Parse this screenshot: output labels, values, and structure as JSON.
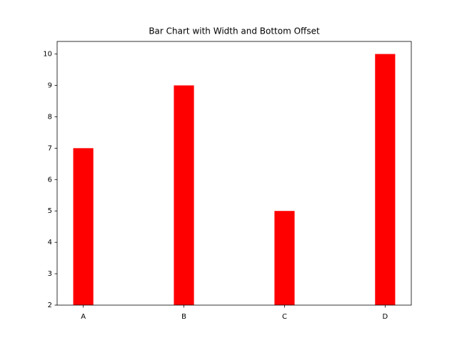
{
  "chart_data": {
    "type": "bar",
    "title": "Bar Chart with Width and Bottom Offset",
    "categories": [
      "A",
      "B",
      "C",
      "D"
    ],
    "values": [
      5,
      7,
      3,
      8
    ],
    "bottom": 2,
    "width": 0.2,
    "color": "#ff0000",
    "ylim": [
      2,
      10.4
    ],
    "yticks": [
      2,
      3,
      4,
      5,
      6,
      7,
      8,
      9,
      10
    ],
    "grid": false
  }
}
